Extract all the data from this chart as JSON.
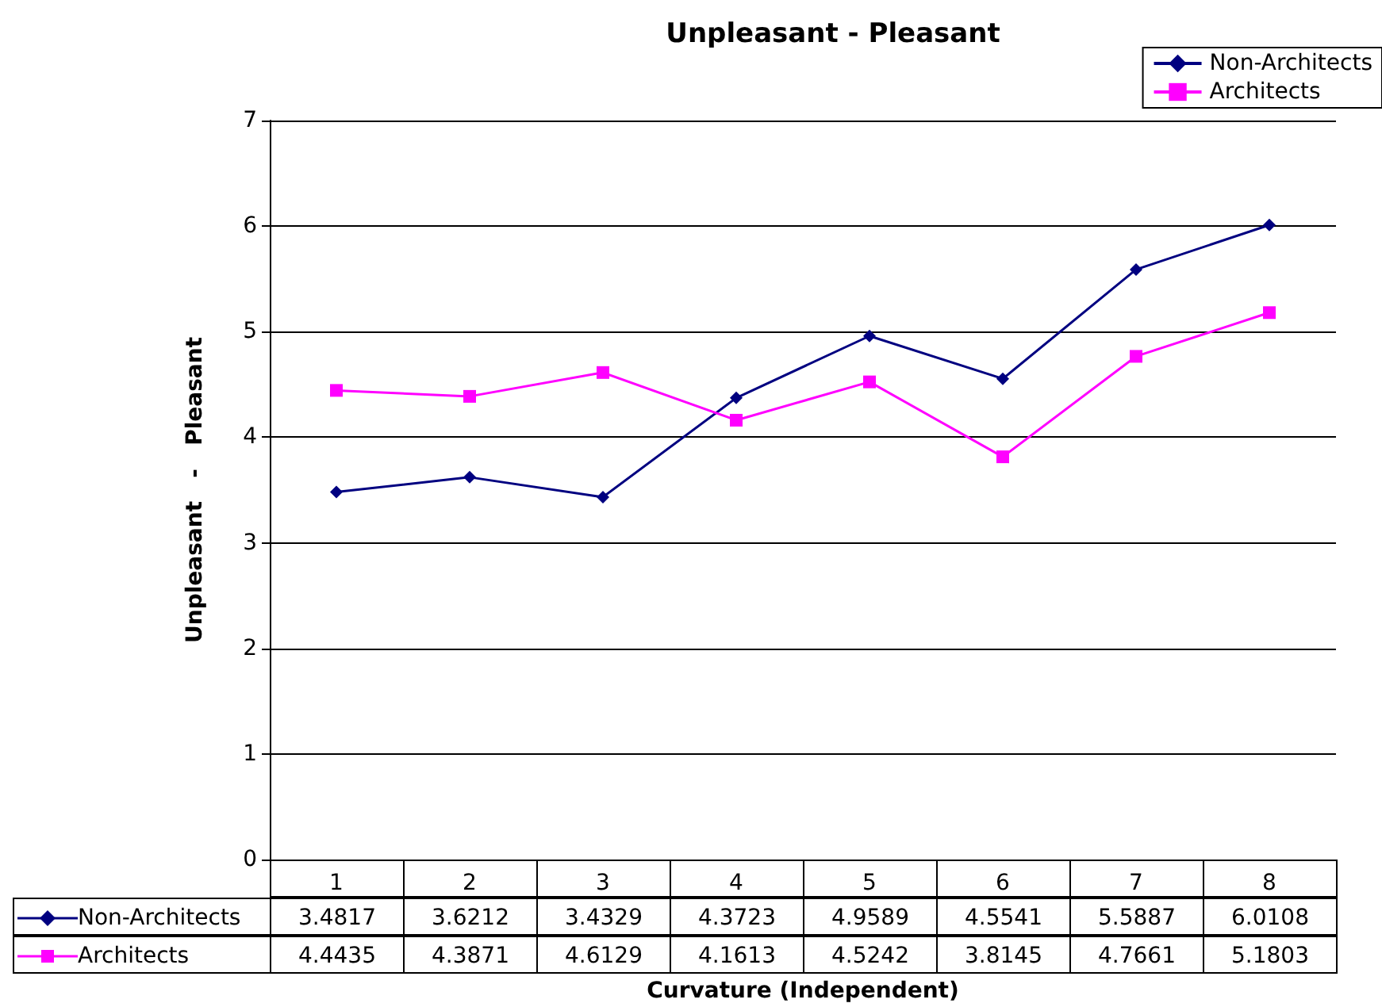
{
  "chart_data": {
    "type": "line",
    "title": "Unpleasant - Pleasant",
    "xlabel": "Curvature (Independent)",
    "ylabel": "Unpleasant   -   Pleasant",
    "categories": [
      "1",
      "2",
      "3",
      "4",
      "5",
      "6",
      "7",
      "8"
    ],
    "series": [
      {
        "name": "Non-Architects",
        "color": "#000080",
        "marker": "diamond",
        "values": [
          3.4817,
          3.6212,
          3.4329,
          4.3723,
          4.9589,
          4.5541,
          5.5887,
          6.0108
        ]
      },
      {
        "name": "Architects",
        "color": "#ff00ff",
        "marker": "square",
        "values": [
          4.4435,
          4.3871,
          4.6129,
          4.1613,
          4.5242,
          3.8145,
          4.7661,
          5.1803
        ]
      }
    ],
    "ylim": [
      0,
      7
    ],
    "yticks": [
      0,
      1,
      2,
      3,
      4,
      5,
      6,
      7
    ],
    "grid": "y",
    "legend": "top right",
    "data_labels": true,
    "line_style": "solid"
  }
}
